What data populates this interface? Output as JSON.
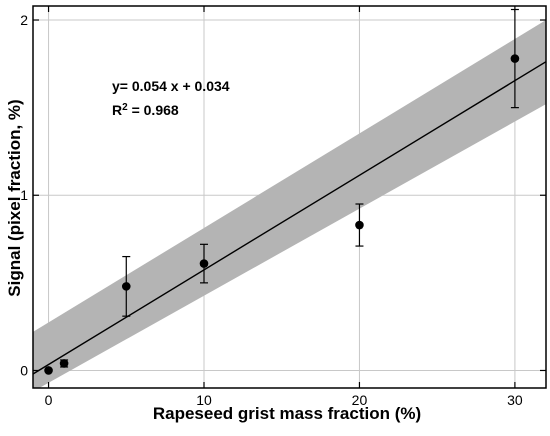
{
  "chart_data": {
    "type": "scatter",
    "title": "",
    "xlabel": "Rapeseed grist mass fraction (%)",
    "ylabel": "Signal (pixel fraction, %)",
    "xlim": [
      -1,
      32
    ],
    "ylim": [
      -0.1,
      2.08
    ],
    "x_ticks": [
      0,
      10,
      20,
      30
    ],
    "y_ticks": [
      0,
      1,
      2
    ],
    "grid": true,
    "points": [
      {
        "x": 0,
        "y": 0.0,
        "err": 0.0
      },
      {
        "x": 1,
        "y": 0.04,
        "err": 0.02
      },
      {
        "x": 5,
        "y": 0.48,
        "err": 0.17
      },
      {
        "x": 10,
        "y": 0.61,
        "err": 0.11
      },
      {
        "x": 20,
        "y": 0.83,
        "err": 0.12
      },
      {
        "x": 30,
        "y": 1.78,
        "err": 0.28
      }
    ],
    "fit": {
      "slope": 0.054,
      "intercept": 0.034,
      "equation": "y= 0.054 x + 0.034",
      "r2_label": "R",
      "r2_exponent": "2",
      "r2_value": " = 0.968"
    },
    "confidence_band": {
      "x": [
        -1,
        32
      ],
      "lower": [
        -0.12,
        1.52
      ],
      "upper": [
        0.22,
        2.0
      ]
    },
    "colors": {
      "band": "#b4b4b4",
      "line": "#000000",
      "marker": "#000000",
      "grid": "#c8c8c8",
      "frame": "#000000"
    }
  }
}
